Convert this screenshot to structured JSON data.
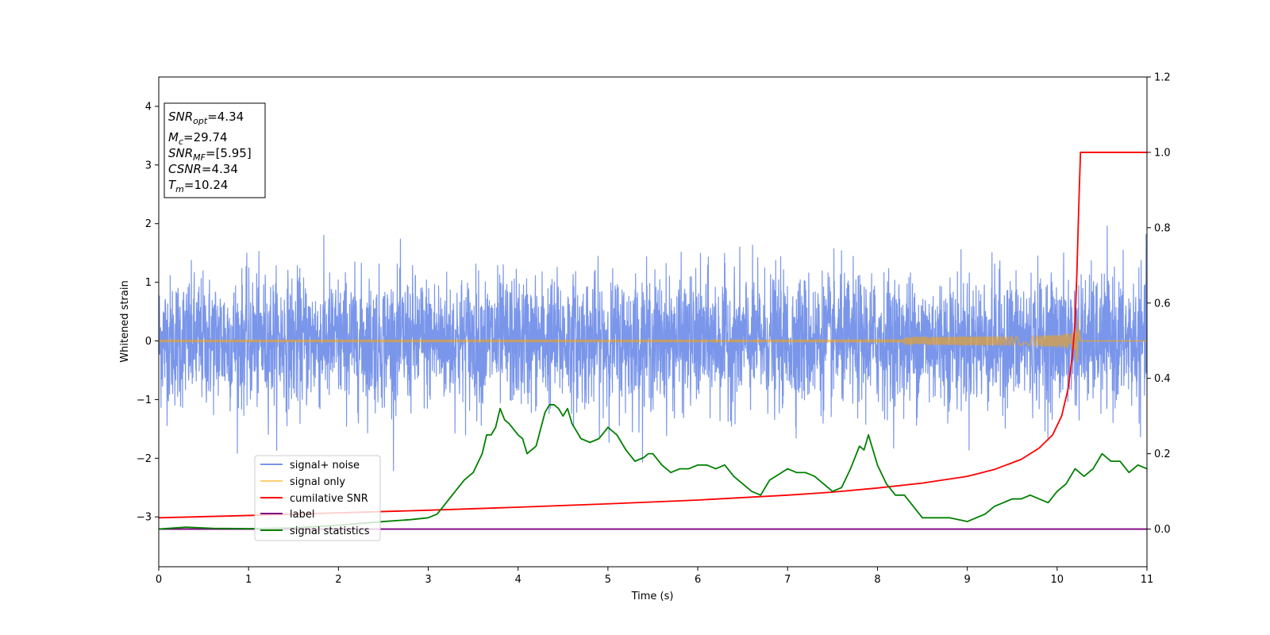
{
  "chart_data": {
    "type": "line",
    "xlabel": "Time (s)",
    "ylabel": "Whitened strain",
    "xlim": [
      0,
      11
    ],
    "ylim_left": [
      -3.85,
      4.5
    ],
    "ylim_right": [
      -0.1,
      1.2
    ],
    "x_ticks": [
      "0",
      "1",
      "2",
      "3",
      "4",
      "5",
      "6",
      "7",
      "8",
      "9",
      "10",
      "11"
    ],
    "y_left_ticks": [
      "−3",
      "−2",
      "−1",
      "0",
      "1",
      "2",
      "3",
      "4"
    ],
    "y_right_ticks": [
      "0.0",
      "0.2",
      "0.4",
      "0.6",
      "0.8",
      "1.0",
      "1.2"
    ],
    "legend_placement": "lower-left",
    "grid": false,
    "info_box": {
      "snr_opt": {
        "base": "SNR",
        "sub": "opt",
        "value": "=4.34"
      },
      "mc": {
        "base": "M",
        "sub": "c",
        "value": "=29.74"
      },
      "snr_mf": {
        "base": "SNR",
        "sub": "MF",
        "value": "=[5.95]"
      },
      "csnr": {
        "base": "CSNR",
        "sub": "",
        "value": "=4.34"
      },
      "tm": {
        "base": "T",
        "sub": "m",
        "value": "=10.24"
      }
    },
    "series": [
      {
        "name": "signal+ noise",
        "axis": "left",
        "color": "#4169e1",
        "kind": "noise",
        "noise_sigma": 0.55,
        "noise_peak": 2.5
      },
      {
        "name": "signal only",
        "axis": "left",
        "color": "#ffa500",
        "kind": "chirp",
        "merger_time": 10.24,
        "peak_amplitude": 0.55
      },
      {
        "name": "cumilative SNR",
        "axis": "right",
        "color": "#ff0000",
        "x": [
          0,
          1,
          2,
          3,
          4,
          5,
          6,
          7,
          7.5,
          8,
          8.5,
          9,
          9.3,
          9.6,
          9.8,
          9.95,
          10.05,
          10.12,
          10.17,
          10.2,
          10.22,
          10.24,
          10.26,
          10.3,
          11
        ],
        "values": [
          0.03,
          0.036,
          0.043,
          0.05,
          0.058,
          0.067,
          0.077,
          0.09,
          0.098,
          0.109,
          0.122,
          0.14,
          0.158,
          0.185,
          0.215,
          0.25,
          0.3,
          0.37,
          0.46,
          0.55,
          0.68,
          0.85,
          1.0,
          1.0,
          1.0
        ]
      },
      {
        "name": "label",
        "axis": "right",
        "color": "#800080",
        "x": [
          0,
          11
        ],
        "values": [
          0,
          0
        ]
      },
      {
        "name": "signal statistics",
        "axis": "right",
        "color": "#008000",
        "x": [
          0,
          0.3,
          0.6,
          1.0,
          1.5,
          2.0,
          2.5,
          2.8,
          3.0,
          3.1,
          3.2,
          3.3,
          3.4,
          3.5,
          3.6,
          3.65,
          3.7,
          3.75,
          3.8,
          3.85,
          3.9,
          4.0,
          4.05,
          4.1,
          4.2,
          4.3,
          4.35,
          4.4,
          4.45,
          4.5,
          4.55,
          4.6,
          4.7,
          4.8,
          4.9,
          5.0,
          5.1,
          5.2,
          5.3,
          5.4,
          5.45,
          5.5,
          5.6,
          5.7,
          5.8,
          5.9,
          6.0,
          6.1,
          6.2,
          6.3,
          6.4,
          6.5,
          6.6,
          6.7,
          6.8,
          7.0,
          7.1,
          7.2,
          7.3,
          7.4,
          7.5,
          7.6,
          7.7,
          7.8,
          7.85,
          7.9,
          8.0,
          8.1,
          8.2,
          8.3,
          8.4,
          8.5,
          8.6,
          8.7,
          8.8,
          9.0,
          9.1,
          9.2,
          9.3,
          9.4,
          9.5,
          9.6,
          9.7,
          9.8,
          9.9,
          10.0,
          10.1,
          10.2,
          10.3,
          10.4,
          10.5,
          10.6,
          10.7,
          10.8,
          10.9,
          11.0
        ],
        "values": [
          0.0,
          0.005,
          0.002,
          0.001,
          0.003,
          0.01,
          0.02,
          0.025,
          0.03,
          0.04,
          0.07,
          0.1,
          0.13,
          0.15,
          0.2,
          0.25,
          0.25,
          0.27,
          0.32,
          0.29,
          0.28,
          0.25,
          0.24,
          0.2,
          0.22,
          0.31,
          0.33,
          0.33,
          0.32,
          0.3,
          0.32,
          0.28,
          0.24,
          0.23,
          0.24,
          0.27,
          0.25,
          0.21,
          0.18,
          0.19,
          0.2,
          0.2,
          0.17,
          0.15,
          0.16,
          0.16,
          0.17,
          0.17,
          0.16,
          0.17,
          0.14,
          0.12,
          0.1,
          0.09,
          0.13,
          0.16,
          0.15,
          0.15,
          0.14,
          0.12,
          0.1,
          0.11,
          0.16,
          0.22,
          0.21,
          0.25,
          0.17,
          0.12,
          0.09,
          0.09,
          0.06,
          0.03,
          0.03,
          0.03,
          0.03,
          0.02,
          0.03,
          0.04,
          0.06,
          0.07,
          0.08,
          0.08,
          0.09,
          0.08,
          0.07,
          0.1,
          0.12,
          0.16,
          0.14,
          0.16,
          0.2,
          0.18,
          0.18,
          0.15,
          0.17,
          0.16
        ]
      }
    ]
  }
}
